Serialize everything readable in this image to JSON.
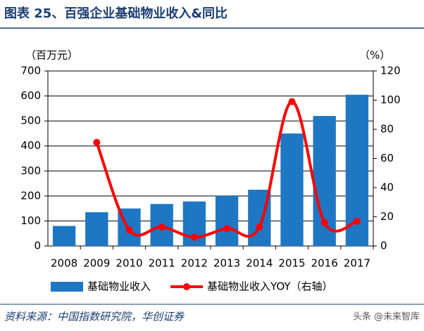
{
  "chart_data": {
    "type": "bar_line",
    "title": "图表 25、百强企业基础物业收入&同比",
    "y_label": "（百万元）",
    "y2_label": "（%）",
    "categories": [
      "2008",
      "2009",
      "2010",
      "2011",
      "2012",
      "2013",
      "2014",
      "2015",
      "2016",
      "2017"
    ],
    "series": [
      {
        "name": "基础物业收入",
        "type": "bar",
        "color": "#1f77c4",
        "values": [
          80,
          135,
          150,
          168,
          178,
          200,
          225,
          450,
          520,
          605
        ]
      },
      {
        "name": "基础物业收入YOY（右轴）",
        "type": "line",
        "axis": "y2",
        "color": "#ff0000",
        "values": [
          null,
          71,
          11,
          13,
          6,
          12,
          13,
          99,
          16,
          17
        ]
      }
    ],
    "ylim": [
      0,
      700
    ],
    "yticks": [
      0,
      100,
      200,
      300,
      400,
      500,
      600,
      700
    ],
    "y2lim": [
      0,
      120
    ],
    "y2ticks": [
      0,
      20,
      40,
      60,
      80,
      100,
      120
    ],
    "grid": true,
    "source": "资料来源：中国指数研究院，华创证券",
    "watermark": "头条 @未来智库"
  }
}
